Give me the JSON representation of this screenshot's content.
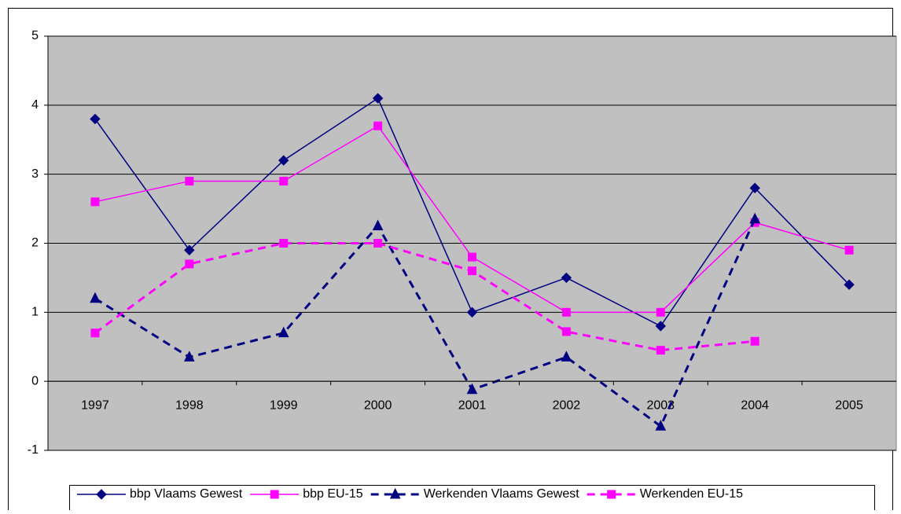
{
  "chart_data": {
    "type": "line",
    "categories": [
      "1997",
      "1998",
      "1999",
      "2000",
      "2001",
      "2002",
      "2003",
      "2004",
      "2005"
    ],
    "series": [
      {
        "name": "bbp Vlaams Gewest",
        "color": "#000080",
        "marker": "diamond",
        "dashed": false,
        "values": [
          3.8,
          1.9,
          3.2,
          4.1,
          1.0,
          1.5,
          0.8,
          2.8,
          1.4
        ]
      },
      {
        "name": "bbp EU-15",
        "color": "#ff00ff",
        "marker": "square",
        "dashed": false,
        "values": [
          2.6,
          2.9,
          2.9,
          3.7,
          1.8,
          1.0,
          1.0,
          2.3,
          1.9
        ]
      },
      {
        "name": "Werkenden Vlaams Gewest",
        "color": "#000080",
        "marker": "triangle",
        "dashed": true,
        "values": [
          1.2,
          0.35,
          0.7,
          2.25,
          -0.12,
          0.35,
          -0.65,
          2.35,
          null
        ]
      },
      {
        "name": "Werkenden EU-15",
        "color": "#ff00ff",
        "marker": "square",
        "dashed": true,
        "values": [
          0.7,
          1.7,
          2.0,
          2.0,
          1.6,
          0.72,
          0.45,
          0.58,
          null
        ]
      }
    ],
    "ylim": [
      -1,
      5
    ],
    "yticks": [
      -1,
      0,
      1,
      2,
      3,
      4,
      5
    ],
    "grid": true,
    "legend": "bottom"
  }
}
